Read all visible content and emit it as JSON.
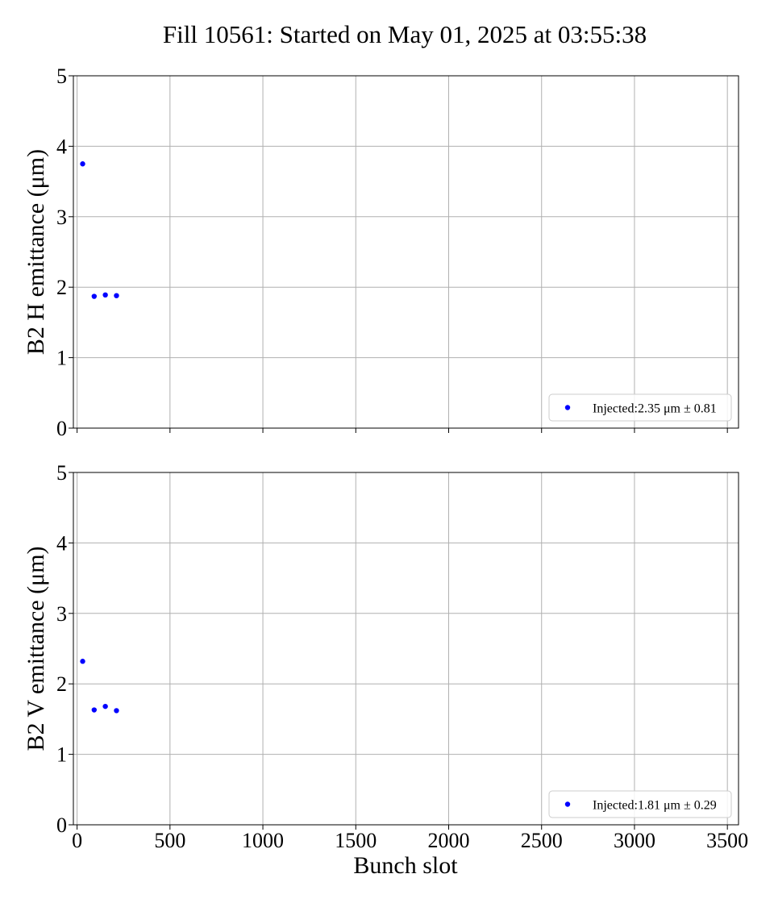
{
  "chart_data": {
    "type": "scatter",
    "title": "Fill 10561: Started on May 01, 2025 at 03:55:38",
    "xlabel": "Bunch slot",
    "xlim": [
      -20,
      3560
    ],
    "x_ticks": [
      0,
      500,
      1000,
      1500,
      2000,
      2500,
      3000,
      3500
    ],
    "grid": true,
    "marker_color": "#0000ff",
    "subplots": [
      {
        "id": "h",
        "ylabel": "B2 H emittance (μm)",
        "ylim": [
          0,
          5
        ],
        "y_ticks": [
          0,
          1,
          2,
          3,
          4,
          5
        ],
        "legend_position": "lower-right",
        "series": [
          {
            "name": "Injected:2.35 μm ± 0.81",
            "x": [
              30,
              92,
              152,
              212
            ],
            "y": [
              3.75,
              1.87,
              1.89,
              1.88
            ]
          }
        ]
      },
      {
        "id": "v",
        "ylabel": "B2 V emittance (μm)",
        "ylim": [
          0,
          5
        ],
        "y_ticks": [
          0,
          1,
          2,
          3,
          4,
          5
        ],
        "legend_position": "lower-right",
        "series": [
          {
            "name": "Injected:1.81 μm ± 0.29",
            "x": [
              30,
              92,
              152,
              212
            ],
            "y": [
              2.32,
              1.63,
              1.68,
              1.62
            ]
          }
        ]
      }
    ]
  }
}
